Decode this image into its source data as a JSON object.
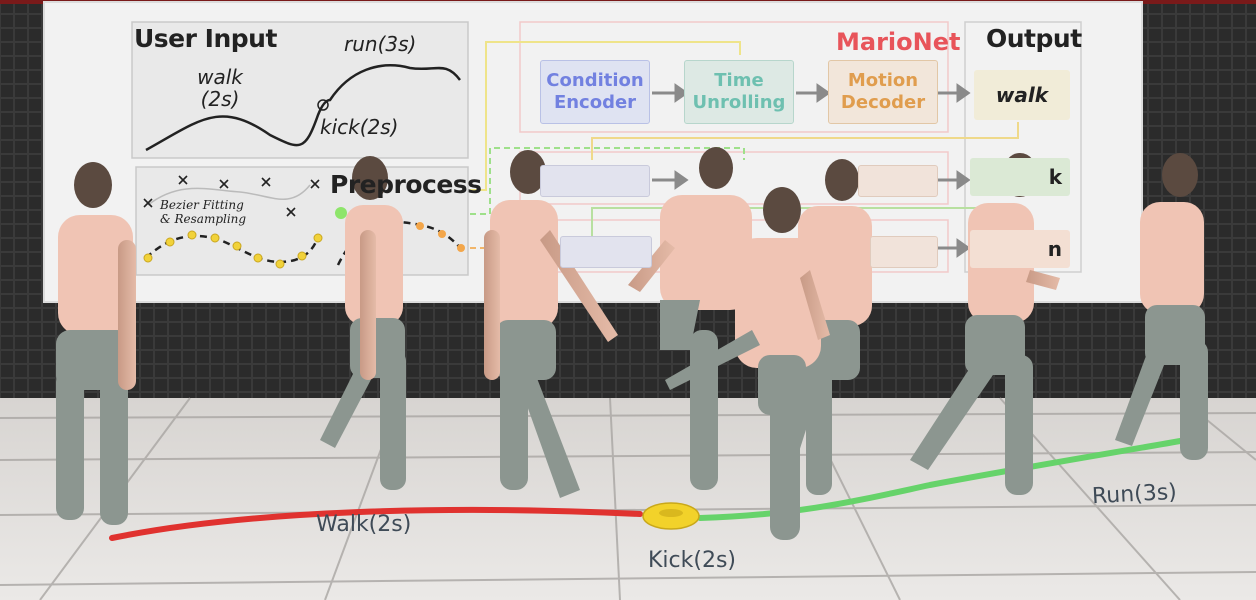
{
  "board": {
    "user_input_title": "User Input",
    "walk_label": "walk",
    "walk_duration": "(2s)",
    "run_label": "run(3s)",
    "kick_label": "kick(2s)",
    "bezier_label_line1": "Bezier Fitting",
    "bezier_label_line2": "& Resampling",
    "preprocess_title": "Preprocess",
    "marionet_title": "MarioNet",
    "output_title": "Output",
    "condition_encoder": "Condition Encoder",
    "time_unrolling": "Time Unrolling",
    "motion_decoder": "Motion Decoder",
    "output_walk": "walk",
    "output_kick_partial": "k",
    "output_run_partial": "n"
  },
  "floor": {
    "walk_label": "Walk(2s)",
    "kick_label": "Kick(2s)",
    "run_label": "Run(3s)"
  },
  "colors": {
    "walk_path": "#e0322f",
    "run_path": "#66d36a",
    "kick_marker": "#f2d22a",
    "marionet_accent": "#e8545a"
  }
}
